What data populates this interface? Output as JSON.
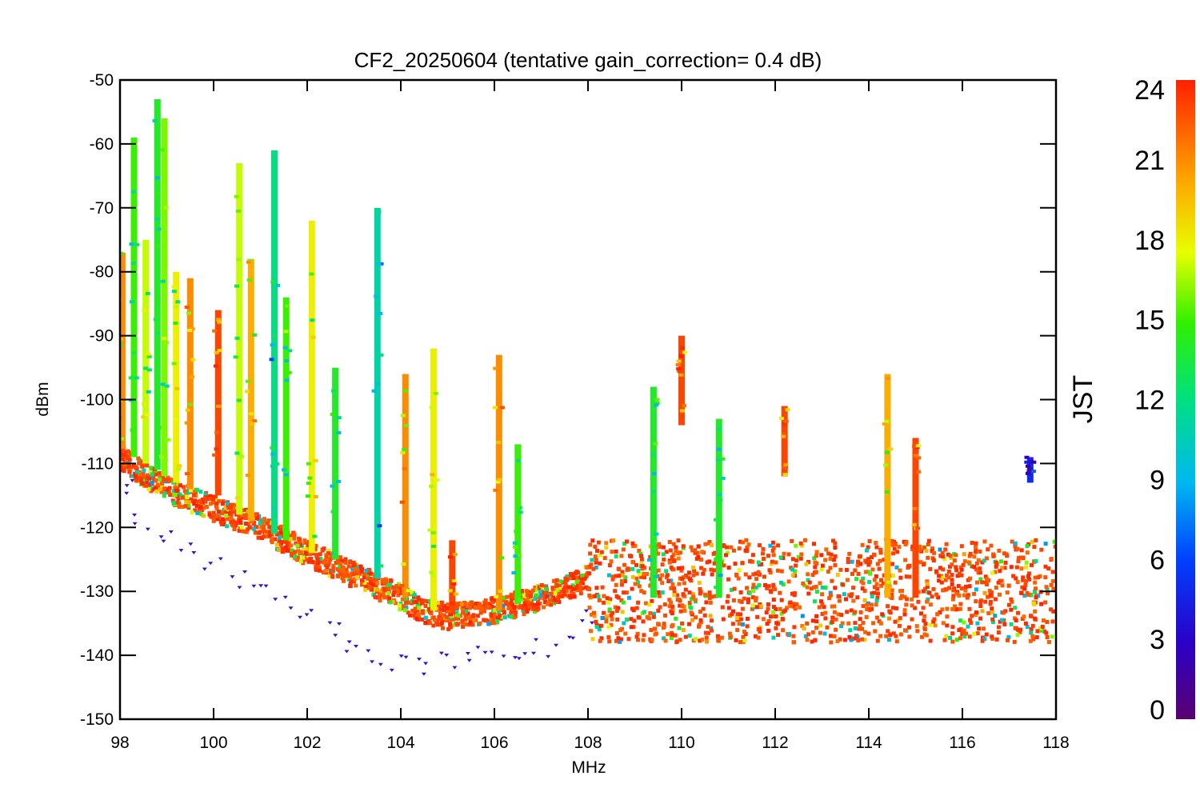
{
  "chart_data": {
    "type": "scatter",
    "title": "CF2_20250604 (tentative gain_correction=  0.4 dB)",
    "xlabel": "MHz",
    "ylabel": "dBm",
    "xlim": [
      98,
      118
    ],
    "ylim": [
      -150,
      -50
    ],
    "x_ticks": [
      "98",
      "100",
      "102",
      "104",
      "106",
      "108",
      "110",
      "112",
      "114",
      "116",
      "118"
    ],
    "y_ticks": [
      "-50",
      "-60",
      "-70",
      "-80",
      "-90",
      "-100",
      "-110",
      "-120",
      "-130",
      "-140",
      "-150"
    ],
    "colorbar": {
      "label": "JST",
      "range": [
        0,
        24
      ],
      "ticks": [
        "24",
        "21",
        "18",
        "15",
        "12",
        "9",
        "6",
        "3",
        "0"
      ],
      "colormap": "rainbow (purple-blue-cyan-green-yellow-orange-red)"
    },
    "noise_floor": {
      "x": [
        98,
        99,
        100,
        101,
        102,
        103,
        104,
        104.5,
        105,
        106,
        107,
        108,
        108.05,
        110,
        112,
        114,
        116,
        118
      ],
      "dbm_center": [
        -109,
        -114,
        -117,
        -120,
        -124,
        -127.5,
        -131,
        -133,
        -134,
        -133,
        -131,
        -128,
        -130,
        -130,
        -130,
        -130,
        -130,
        -130
      ],
      "dbm_spread": [
        2,
        2,
        2,
        2,
        2,
        2,
        2,
        2,
        2,
        2,
        2,
        2,
        8,
        8,
        8,
        8,
        8,
        8
      ]
    },
    "low_outliers_purple": {
      "x": [
        98.1,
        98.5,
        99,
        99.5,
        100,
        100.5,
        101,
        101.5,
        102,
        102.5,
        103,
        103.5,
        104,
        104.5,
        105,
        105.5,
        106,
        106.5,
        107,
        107.5,
        108
      ],
      "dbm": [
        -114,
        -119,
        -121,
        -124,
        -126,
        -128,
        -130,
        -132,
        -134,
        -136,
        -138,
        -140,
        -141,
        -142,
        -141,
        -140,
        -139,
        -140,
        -139,
        -137,
        -134
      ]
    },
    "signals": [
      {
        "x": 98.05,
        "top": -77,
        "bottom": -108,
        "jst": 21
      },
      {
        "x": 98.3,
        "top": -59,
        "bottom": -109,
        "jst": 15
      },
      {
        "x": 98.55,
        "top": -75,
        "bottom": -110,
        "jst": 17
      },
      {
        "x": 98.8,
        "top": -53,
        "bottom": -111,
        "jst": 14
      },
      {
        "x": 98.95,
        "top": -56,
        "bottom": -112,
        "jst": 16
      },
      {
        "x": 99.2,
        "top": -80,
        "bottom": -113,
        "jst": 18
      },
      {
        "x": 99.5,
        "top": -81,
        "bottom": -114,
        "jst": 21
      },
      {
        "x": 100.1,
        "top": -86,
        "bottom": -115,
        "jst": 23
      },
      {
        "x": 100.55,
        "top": -63,
        "bottom": -118,
        "jst": 17
      },
      {
        "x": 100.8,
        "top": -78,
        "bottom": -119,
        "jst": 20
      },
      {
        "x": 101.3,
        "top": -61,
        "bottom": -121,
        "jst": 12
      },
      {
        "x": 101.55,
        "top": -84,
        "bottom": -122,
        "jst": 15
      },
      {
        "x": 102.1,
        "top": -72,
        "bottom": -124,
        "jst": 18
      },
      {
        "x": 102.6,
        "top": -95,
        "bottom": -125,
        "jst": 14
      },
      {
        "x": 103.5,
        "top": -70,
        "bottom": -128,
        "jst": 11
      },
      {
        "x": 104.1,
        "top": -96,
        "bottom": -131,
        "jst": 21
      },
      {
        "x": 104.7,
        "top": -92,
        "bottom": -133,
        "jst": 18
      },
      {
        "x": 105.1,
        "top": -122,
        "bottom": -134,
        "jst": 23
      },
      {
        "x": 106.1,
        "top": -93,
        "bottom": -133,
        "jst": 21
      },
      {
        "x": 106.5,
        "top": -107,
        "bottom": -132,
        "jst": 15
      },
      {
        "x": 109.4,
        "top": -98,
        "bottom": -131,
        "jst": 14
      },
      {
        "x": 110.0,
        "top": -90,
        "bottom": -104,
        "jst": 23
      },
      {
        "x": 110.8,
        "top": -103,
        "bottom": -131,
        "jst": 14
      },
      {
        "x": 112.2,
        "top": -101,
        "bottom": -112,
        "jst": 23
      },
      {
        "x": 114.4,
        "top": -96,
        "bottom": -131,
        "jst": 20
      },
      {
        "x": 115.0,
        "top": -106,
        "bottom": -131,
        "jst": 23
      },
      {
        "x": 117.45,
        "top": -109,
        "bottom": -113,
        "jst": 5
      }
    ]
  }
}
